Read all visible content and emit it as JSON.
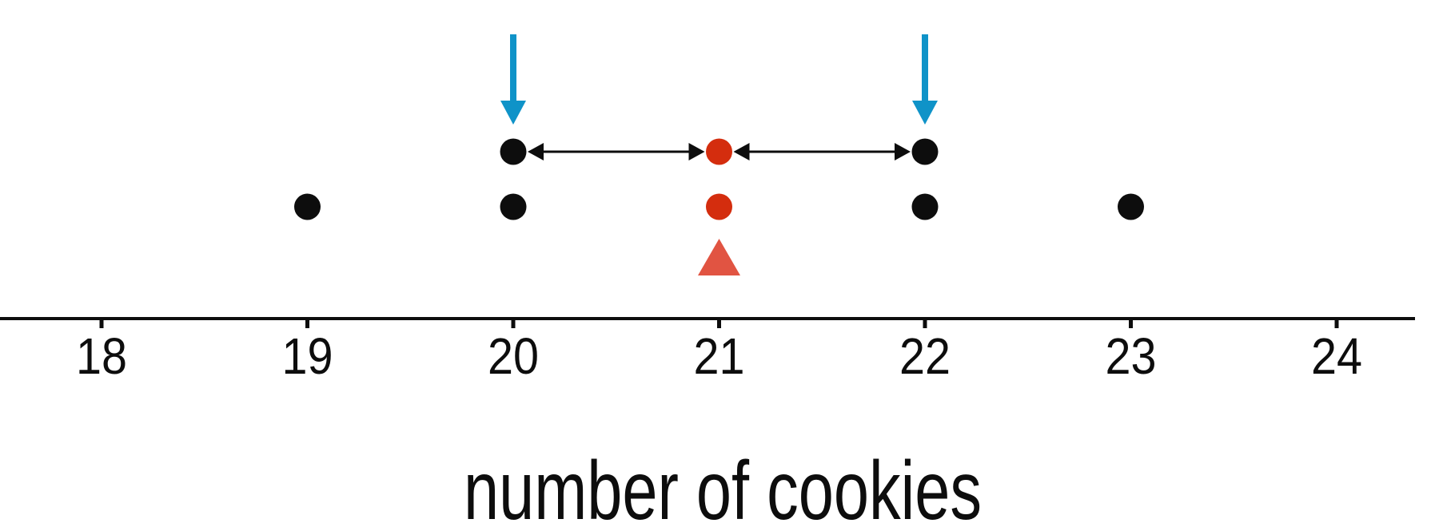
{
  "figure": {
    "background": "#ffffff",
    "axis_color": "#0d0d0d",
    "text_color": "#0d0d0d"
  },
  "colors": {
    "dot_black": "#0d0d0d",
    "dot_red": "#d42d0e",
    "mean_triangle": "#e15442",
    "blue_arrow": "#0f93c8",
    "distance_arrow": "#0d0d0d"
  },
  "chart_data": {
    "type": "dotplot",
    "title": "",
    "xlabel": "number of cookies",
    "x_ticks": [
      18,
      19,
      20,
      21,
      22,
      23,
      24
    ],
    "x_tick_labels": [
      "18",
      "19",
      "20",
      "21",
      "22",
      "23",
      "24"
    ],
    "x_range": [
      18,
      24
    ],
    "grid": false,
    "points": [
      {
        "x": 19,
        "count": 1,
        "color": "black"
      },
      {
        "x": 20,
        "count": 2,
        "color": "black"
      },
      {
        "x": 21,
        "count": 2,
        "color": "red"
      },
      {
        "x": 22,
        "count": 2,
        "color": "black"
      },
      {
        "x": 23,
        "count": 1,
        "color": "black"
      }
    ],
    "mean_marker": {
      "x": 21,
      "shape": "triangle"
    },
    "blue_arrow_values": [
      20,
      22
    ],
    "distance_arrows": [
      {
        "from": 21,
        "to": 20
      },
      {
        "from": 21,
        "to": 22
      }
    ]
  }
}
